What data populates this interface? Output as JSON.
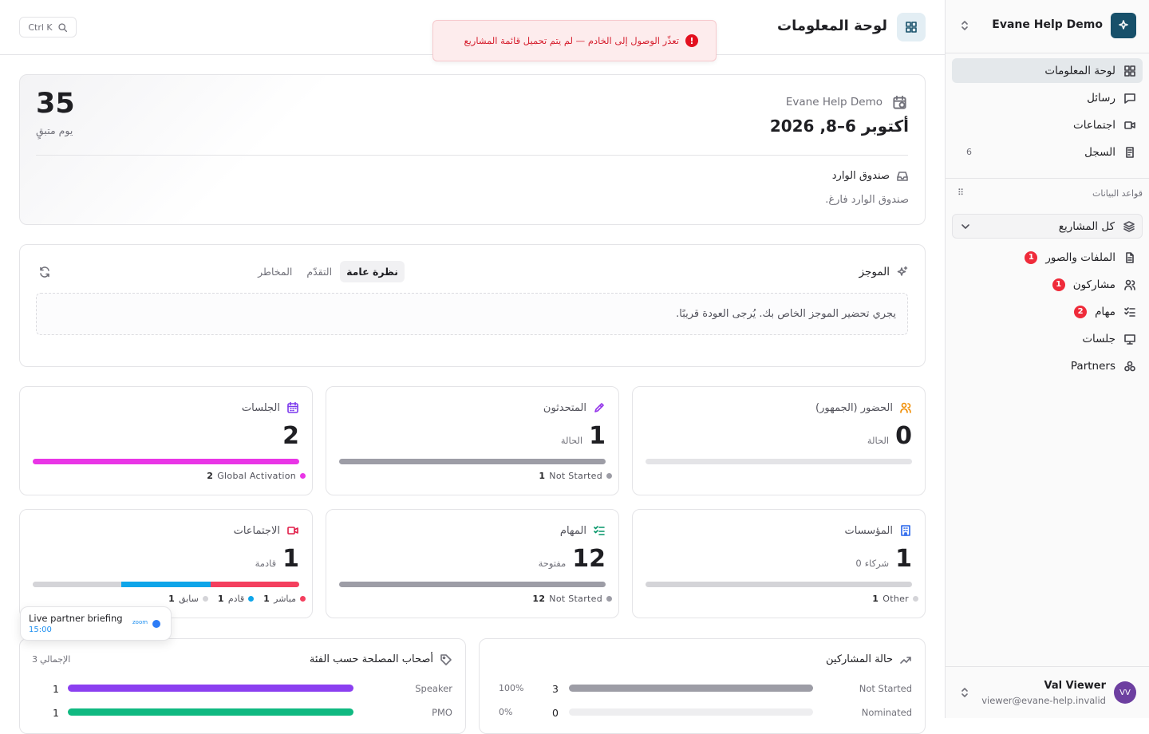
{
  "sidebar": {
    "workspace": "Evane Help Demo",
    "nav": [
      {
        "label": "لوحة المعلومات"
      },
      {
        "label": "رسائل"
      },
      {
        "label": "اجتماعات"
      },
      {
        "label": "السجل",
        "count": 6
      }
    ],
    "section": "قواعد البيانات",
    "projects": "كل المشاريع",
    "db_nav": [
      {
        "label": "الملفات والصور",
        "badge": 1
      },
      {
        "label": "مشاركون",
        "badge": 1
      },
      {
        "label": "مهام",
        "badge": 2
      },
      {
        "label": "جلسات"
      },
      {
        "label": "Partners"
      }
    ],
    "user": {
      "initials": "VV",
      "name": "Val Viewer",
      "email": "viewer@evane-help.invalid"
    }
  },
  "header": {
    "title": "لوحة المعلومات",
    "search": "Ctrl K"
  },
  "toast": {
    "message": "تعذّر الوصول إلى الخادم — لم يتم تحميل قائمة المشاريع"
  },
  "event": {
    "name": "Evane Help Demo",
    "dates": "أكتوبر 6–8, 2026",
    "days_left": 35,
    "days_label": "يوم متبقٍ",
    "inbox_title": "صندوق الوارد",
    "inbox_empty": "صندوق الوارد فارغ."
  },
  "brief": {
    "title": "الموجز",
    "tabs": [
      "نظرة عامة",
      "التقدّم",
      "المخاطر"
    ],
    "message": "يجري تحضير الموجز الخاص بك. يُرجى العودة قريبًا."
  },
  "stats": [
    {
      "title": "الحضور (الجمهور)",
      "value": 0,
      "unit": "الحالة",
      "legend": []
    },
    {
      "title": "المتحدثون",
      "value": 1,
      "unit": "الحالة",
      "legend": [
        {
          "label": "Not Started",
          "count": 1,
          "color": "#9d9da6"
        }
      ]
    },
    {
      "title": "الجلسات",
      "value": 2,
      "legend": [
        {
          "label": "Global Activation",
          "count": 2,
          "color": "#e935e6"
        }
      ]
    },
    {
      "title": "المؤسسات",
      "value": 1,
      "unit": "شركاء",
      "unit_count": 0,
      "legend": [
        {
          "label": "Other",
          "count": 1,
          "color": "#d4d4d8"
        }
      ]
    },
    {
      "title": "المهام",
      "value": 12,
      "unit": "مفتوحة",
      "legend": [
        {
          "label": "Not Started",
          "count": 12,
          "color": "#9d9da6"
        }
      ]
    },
    {
      "title": "الاجتماعات",
      "value": 1,
      "unit": "قادمة",
      "legend": [
        {
          "label": "مباشر",
          "count": 1,
          "color": "#f43f5e"
        },
        {
          "label": "قادم",
          "count": 1,
          "color": "#0ea5e9"
        },
        {
          "label": "سابق",
          "count": 1,
          "color": "#d4d4d8"
        }
      ]
    }
  ],
  "floating": {
    "title": "Live partner briefing",
    "time": "15:00",
    "app": "zoom"
  },
  "stakeholders": {
    "title": "أصحاب المصلحة حسب الفئة",
    "total": 3,
    "total_label": "الإجمالي",
    "rows": [
      {
        "label": "Speaker",
        "count": 1,
        "color": "#8b3ff0"
      },
      {
        "label": "PMO",
        "count": 1,
        "color": "#10b981"
      }
    ]
  },
  "participants": {
    "title": "حالة المشاركين",
    "rows": [
      {
        "label": "Not Started",
        "count": 3,
        "percent": "100%"
      },
      {
        "label": "Nominated",
        "count": 0,
        "percent": "0%"
      }
    ]
  }
}
